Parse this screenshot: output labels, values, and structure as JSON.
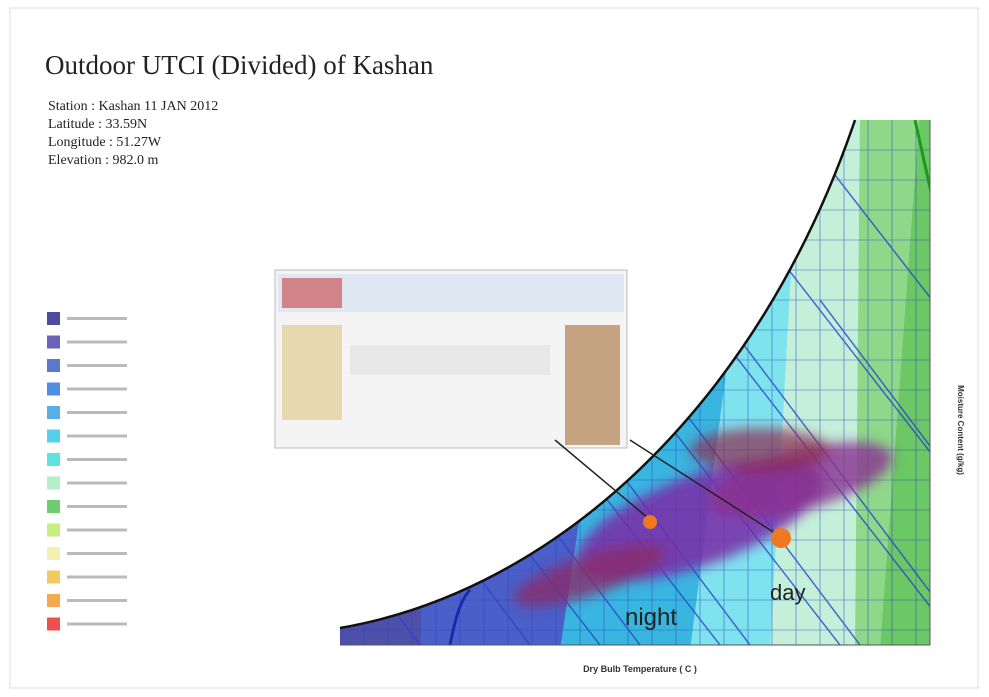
{
  "header": {
    "title": "Outdoor UTCI (Divided) of Kashan",
    "station": [
      "Station : Kashan 11 JAN 2012",
      "Latitude : 33.59N",
      "Longitude : 51.27W",
      "Elevation : 982.0 m"
    ]
  },
  "chart": {
    "annotations": [
      "night",
      "day"
    ],
    "x_axis_label": "Dry Bulb Temperature ( C )",
    "y_axis_label": "Moisture Content (g/kg)"
  }
}
